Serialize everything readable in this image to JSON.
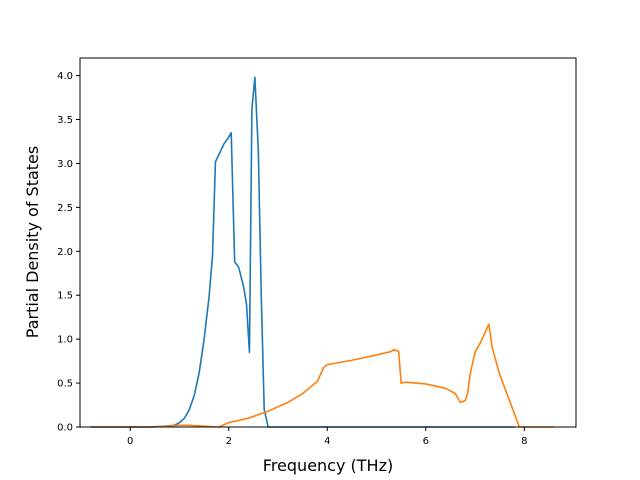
{
  "chart_data": {
    "type": "line",
    "title": "",
    "xlabel": "Frequency (THz)",
    "ylabel": "Partial Density of States",
    "xlim": [
      -1.02,
      9.05
    ],
    "ylim": [
      0.0,
      4.2
    ],
    "xticks": [
      0,
      2,
      4,
      6,
      8
    ],
    "xtick_labels": [
      "0",
      "2",
      "4",
      "6",
      "8"
    ],
    "yticks": [
      0.0,
      0.5,
      1.0,
      1.5,
      2.0,
      2.5,
      3.0,
      3.5,
      4.0
    ],
    "ytick_labels": [
      "0.0",
      "0.5",
      "1.0",
      "1.5",
      "2.0",
      "2.5",
      "3.0",
      "3.5",
      "4.0"
    ],
    "grid": false,
    "legend": "none",
    "series": [
      {
        "color": "#1f77b4",
        "x": [
          -0.8,
          0.0,
          0.4,
          0.7,
          0.9,
          1.0,
          1.1,
          1.2,
          1.3,
          1.4,
          1.5,
          1.6,
          1.67,
          1.73,
          1.8,
          1.9,
          2.0,
          2.05,
          2.12,
          2.2,
          2.3,
          2.36,
          2.42,
          2.47,
          2.53,
          2.6,
          2.66,
          2.72,
          2.8,
          4.0,
          6.0,
          7.8
        ],
        "y": [
          0.0,
          0.0,
          0.0,
          0.01,
          0.02,
          0.05,
          0.1,
          0.2,
          0.36,
          0.62,
          1.0,
          1.48,
          1.95,
          3.02,
          3.1,
          3.22,
          3.3,
          3.35,
          1.88,
          1.82,
          1.6,
          1.4,
          0.85,
          3.62,
          3.98,
          3.15,
          1.5,
          0.2,
          0.0,
          0.0,
          0.0,
          0.0
        ]
      },
      {
        "color": "#ff7f0e",
        "x": [
          -0.8,
          0.5,
          1.0,
          1.2,
          1.5,
          1.8,
          2.0,
          2.4,
          2.8,
          3.2,
          3.5,
          3.8,
          3.93,
          4.0,
          4.5,
          5.0,
          5.3,
          5.35,
          5.45,
          5.5,
          5.6,
          5.8,
          6.0,
          6.4,
          6.6,
          6.7,
          6.8,
          6.85,
          6.9,
          7.0,
          7.1,
          7.2,
          7.28,
          7.35,
          7.5,
          7.7,
          7.8,
          7.9,
          8.3,
          8.6
        ],
        "y": [
          0.0,
          0.0,
          0.02,
          0.02,
          0.01,
          0.0,
          0.05,
          0.1,
          0.18,
          0.28,
          0.38,
          0.52,
          0.68,
          0.71,
          0.76,
          0.82,
          0.86,
          0.88,
          0.86,
          0.5,
          0.51,
          0.5,
          0.49,
          0.44,
          0.38,
          0.28,
          0.3,
          0.38,
          0.6,
          0.85,
          0.95,
          1.07,
          1.17,
          0.9,
          0.6,
          0.3,
          0.15,
          0.0,
          0.0,
          0.0
        ]
      }
    ]
  }
}
